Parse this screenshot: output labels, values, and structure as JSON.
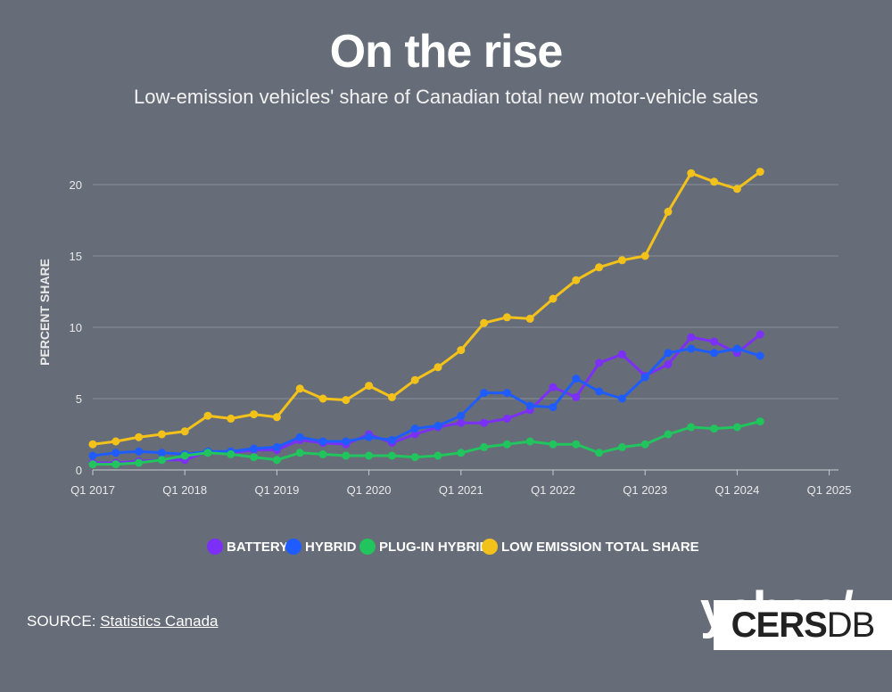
{
  "header": {
    "title": "On the rise",
    "subtitle": "Low-emission vehicles' share of Canadian total new motor-vehicle sales"
  },
  "source": {
    "prefix": "SOURCE: ",
    "link_text": "Statistics Canada"
  },
  "watermark": {
    "logo_text": "yahoo/",
    "box_text_bold": "CERS",
    "box_text_thin": "DB"
  },
  "chart_data": {
    "type": "line",
    "ylabel": "PERCENT SHARE",
    "xlabel": "",
    "ylim": [
      0,
      22
    ],
    "yticks": [
      0,
      5,
      10,
      15,
      20
    ],
    "xticks": [
      "Q1 2017",
      "Q1 2018",
      "Q1 2019",
      "Q1 2020",
      "Q1 2021",
      "Q1 2022",
      "Q1 2023",
      "Q1 2024",
      "Q1 2025"
    ],
    "grid": true,
    "legend_position": "bottom",
    "x": [
      "Q1 2017",
      "Q2 2017",
      "Q3 2017",
      "Q4 2017",
      "Q1 2018",
      "Q2 2018",
      "Q3 2018",
      "Q4 2018",
      "Q1 2019",
      "Q2 2019",
      "Q3 2019",
      "Q4 2019",
      "Q1 2020",
      "Q2 2020",
      "Q3 2020",
      "Q4 2020",
      "Q1 2021",
      "Q2 2021",
      "Q3 2021",
      "Q4 2021",
      "Q1 2022",
      "Q2 2022",
      "Q3 2022",
      "Q4 2022",
      "Q1 2023",
      "Q2 2023",
      "Q3 2023",
      "Q4 2023",
      "Q1 2024",
      "Q2 2024"
    ],
    "series": [
      {
        "name": "BATTERY",
        "color": "#7b2ff7",
        "values": [
          0.5,
          0.5,
          0.6,
          0.7,
          0.7,
          1.3,
          1.2,
          1.4,
          1.4,
          2.1,
          1.9,
          1.8,
          2.5,
          1.9,
          2.5,
          3.0,
          3.3,
          3.3,
          3.6,
          4.2,
          5.8,
          5.1,
          7.5,
          8.1,
          6.6,
          7.4,
          9.3,
          9.0,
          8.2,
          9.5
        ]
      },
      {
        "name": "HYBRID",
        "color": "#1f5cff",
        "values": [
          1.0,
          1.2,
          1.3,
          1.2,
          1.1,
          1.3,
          1.3,
          1.5,
          1.6,
          2.3,
          2.0,
          2.0,
          2.3,
          2.1,
          2.9,
          3.1,
          3.8,
          5.4,
          5.4,
          4.5,
          4.4,
          6.4,
          5.5,
          5.0,
          6.5,
          8.2,
          8.5,
          8.2,
          8.5,
          8.0
        ]
      },
      {
        "name": "PLUG-IN HYBRID",
        "color": "#21c45d",
        "values": [
          0.4,
          0.4,
          0.5,
          0.7,
          1.0,
          1.2,
          1.1,
          0.9,
          0.7,
          1.2,
          1.1,
          1.0,
          1.0,
          1.0,
          0.9,
          1.0,
          1.2,
          1.6,
          1.8,
          2.0,
          1.8,
          1.8,
          1.2,
          1.6,
          1.8,
          2.5,
          3.0,
          2.9,
          3.0,
          3.4
        ]
      },
      {
        "name": "LOW EMISSION TOTAL SHARE",
        "color": "#f2c21b",
        "values": [
          1.8,
          2.0,
          2.3,
          2.5,
          2.7,
          3.8,
          3.6,
          3.9,
          3.7,
          5.7,
          5.0,
          4.9,
          5.9,
          5.1,
          6.3,
          7.2,
          8.4,
          10.3,
          10.7,
          10.6,
          12.0,
          13.3,
          14.2,
          14.7,
          15.0,
          18.1,
          20.8,
          20.2,
          19.7,
          20.9
        ]
      }
    ]
  }
}
